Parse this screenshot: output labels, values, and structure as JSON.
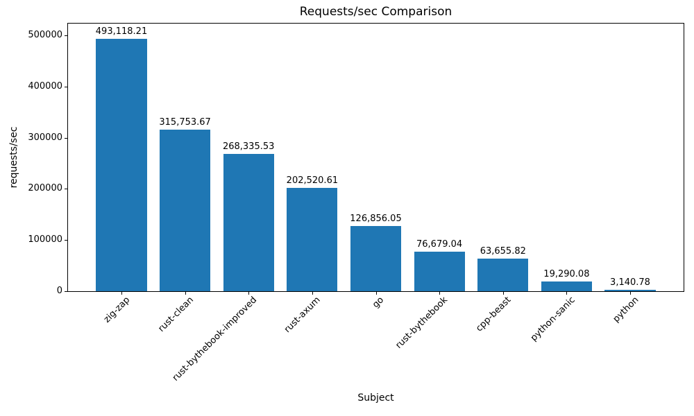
{
  "chart_data": {
    "type": "bar",
    "title": "Requests/sec Comparison",
    "xlabel": "Subject",
    "ylabel": "requests/sec",
    "categories": [
      "zig-zap",
      "rust-clean",
      "rust-bythebook-improved",
      "rust-axum",
      "go",
      "rust-bythebook",
      "cpp-beast",
      "python-sanic",
      "python"
    ],
    "values": [
      493118.21,
      315753.67,
      268335.53,
      202520.61,
      126856.05,
      76679.04,
      63655.82,
      19290.08,
      3140.78
    ],
    "value_labels": [
      "493,118.21",
      "315,753.67",
      "268,335.53",
      "202,520.61",
      "126,856.05",
      "76,679.04",
      "63,655.82",
      "19,290.08",
      "3,140.78"
    ],
    "yticks": [
      0,
      100000,
      200000,
      300000,
      400000,
      500000
    ],
    "ytick_labels": [
      "0",
      "100000",
      "200000",
      "300000",
      "400000",
      "500000"
    ],
    "ylim": [
      0,
      522911
    ],
    "xtick_rotation_deg": 45,
    "bar_width_fraction": 0.8,
    "bar_color": "#1f77b4",
    "text_color": "#000000",
    "background_color": "#ffffff",
    "grid": false,
    "legend_position": "none"
  }
}
